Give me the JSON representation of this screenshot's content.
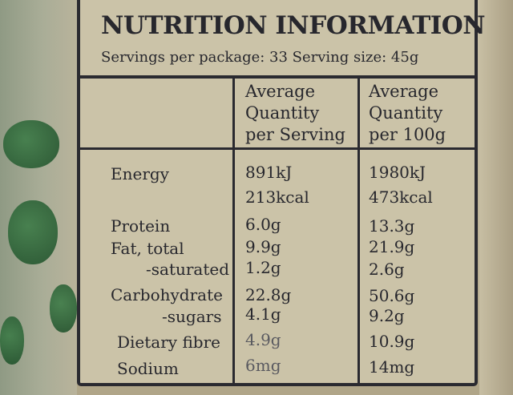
{
  "label": {
    "title": "NUTRITION INFORMATION",
    "servings": "Servings per package: 33 Serving size: 45g",
    "col_serving": [
      "Average",
      "Quantity",
      "per Serving"
    ],
    "col_100g": [
      "Average",
      "Quantity",
      "per 100g"
    ],
    "rows": [
      {
        "name": "Energy",
        "serving": "891kJ",
        "per100": "1980kJ"
      },
      {
        "name": "",
        "serving": "213kcal",
        "per100": "473kcal"
      },
      {
        "name": "Protein",
        "serving": "6.0g",
        "per100": "13.3g"
      },
      {
        "name": "Fat, total",
        "serving": "9.9g",
        "per100": "21.9g"
      },
      {
        "name": "-saturated",
        "serving": "1.2g",
        "per100": "2.6g"
      },
      {
        "name": "Carbohydrate",
        "serving": "22.8g",
        "per100": "50.6g"
      },
      {
        "name": "-sugars",
        "serving": "4.1g",
        "per100": "9.2g"
      },
      {
        "name": "Dietary fibre",
        "serving": "4.9g",
        "per100": "10.9g"
      },
      {
        "name": "Sodium",
        "serving": "6mg",
        "per100": "14mg"
      }
    ]
  }
}
